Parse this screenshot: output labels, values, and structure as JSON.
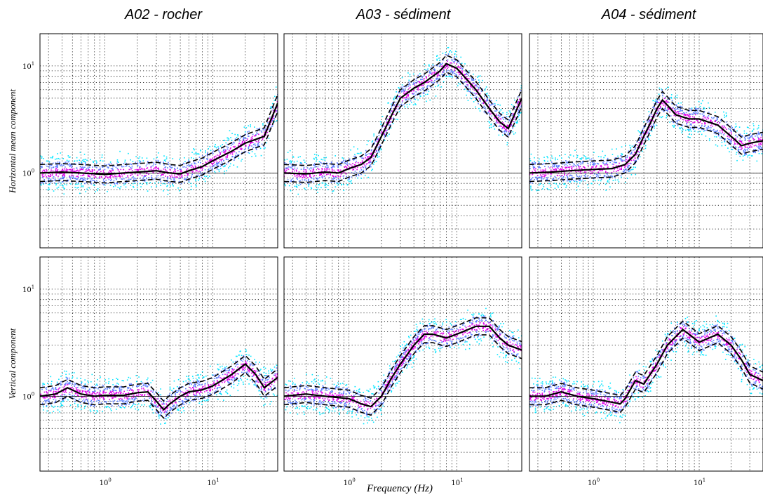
{
  "figure": {
    "column_titles": [
      "A02 - rocher",
      "A03 - sédiment",
      "A04 - sédiment"
    ],
    "row_labels": [
      "Horizontal mean component",
      "Vertical component"
    ],
    "xlabel": "Frequency (Hz)",
    "colors": {
      "scatter_low": "#00e5ff",
      "scatter_mid": "#5b7cff",
      "scatter_high": "#e000e8",
      "median_line": "#000000",
      "reference_line": "#000000",
      "grid": "#000000"
    }
  },
  "chart_data": [
    {
      "type": "line",
      "title": "A02 - rocher",
      "ylabel": "Horizontal mean component",
      "xscale": "log",
      "yscale": "log",
      "xlim": [
        0.25,
        40
      ],
      "ylim": [
        0.2,
        20
      ],
      "xticks": [
        "10^0",
        "10^1"
      ],
      "yticks": [
        "10^0",
        "10^1"
      ],
      "grid": true,
      "series": [
        {
          "x": [
            0.25,
            0.4,
            0.6,
            1,
            1.5,
            2,
            3,
            4,
            5,
            6,
            8,
            10,
            15,
            20,
            30,
            40
          ],
          "y": [
            1.0,
            1.02,
            1.0,
            0.97,
            1.0,
            1.02,
            1.05,
            1.0,
            0.98,
            1.05,
            1.15,
            1.3,
            1.6,
            1.9,
            2.2,
            4.5
          ]
        }
      ]
    },
    {
      "type": "line",
      "title": "A03 - sédiment",
      "ylabel": "",
      "xscale": "log",
      "yscale": "log",
      "xlim": [
        0.25,
        40
      ],
      "ylim": [
        0.2,
        20
      ],
      "xticks": [
        "10^0",
        "10^1"
      ],
      "yticks": [
        "10^0",
        "10^1"
      ],
      "grid": true,
      "series": [
        {
          "x": [
            0.25,
            0.4,
            0.6,
            0.8,
            1,
            1.3,
            1.6,
            2,
            2.5,
            3,
            4,
            5,
            7,
            8,
            10,
            15,
            20,
            25,
            30,
            40
          ],
          "y": [
            1.0,
            0.98,
            1.02,
            1.0,
            1.1,
            1.2,
            1.4,
            2.2,
            3.5,
            5.0,
            6.2,
            7.0,
            9.0,
            10.5,
            9.5,
            6.0,
            4.0,
            3.0,
            2.6,
            5.0
          ]
        }
      ]
    },
    {
      "type": "line",
      "title": "A04 - sédiment",
      "ylabel": "",
      "xscale": "log",
      "yscale": "log",
      "xlim": [
        0.25,
        40
      ],
      "ylim": [
        0.2,
        20
      ],
      "xticks": [
        "10^0",
        "10^1"
      ],
      "yticks": [
        "10^0",
        "10^1"
      ],
      "grid": true,
      "series": [
        {
          "x": [
            0.25,
            0.4,
            0.6,
            1,
            1.5,
            2,
            2.5,
            3,
            3.5,
            4,
            4.5,
            5,
            6,
            8,
            10,
            15,
            20,
            25,
            30,
            40
          ],
          "y": [
            1.0,
            1.02,
            1.05,
            1.08,
            1.1,
            1.2,
            1.5,
            2.2,
            3.0,
            4.0,
            4.8,
            4.3,
            3.5,
            3.2,
            3.2,
            2.8,
            2.2,
            1.8,
            1.9,
            2.0
          ]
        }
      ]
    },
    {
      "type": "line",
      "title": "",
      "ylabel": "Vertical component",
      "xscale": "log",
      "yscale": "log",
      "xlim": [
        0.25,
        40
      ],
      "ylim": [
        0.2,
        20
      ],
      "xticks": [
        "10^0",
        "10^1"
      ],
      "yticks": [
        "10^0",
        "10^1"
      ],
      "grid": true,
      "series": [
        {
          "x": [
            0.25,
            0.35,
            0.45,
            0.6,
            0.8,
            1,
            1.5,
            2,
            2.5,
            3,
            3.5,
            4,
            5,
            6,
            8,
            10,
            15,
            20,
            25,
            30,
            40
          ],
          "y": [
            1.0,
            1.05,
            1.2,
            1.05,
            1.0,
            1.02,
            1.02,
            1.08,
            1.1,
            0.9,
            0.75,
            0.85,
            1.0,
            1.1,
            1.15,
            1.25,
            1.6,
            2.0,
            1.6,
            1.2,
            1.5
          ]
        }
      ]
    },
    {
      "type": "line",
      "title": "",
      "ylabel": "",
      "xscale": "log",
      "yscale": "log",
      "xlim": [
        0.25,
        40
      ],
      "ylim": [
        0.2,
        20
      ],
      "xticks": [
        "10^0",
        "10^1"
      ],
      "yticks": [
        "10^0",
        "10^1"
      ],
      "grid": true,
      "series": [
        {
          "x": [
            0.25,
            0.4,
            0.6,
            1,
            1.3,
            1.6,
            2,
            2.5,
            3,
            4,
            5,
            6,
            8,
            10,
            15,
            20,
            25,
            30,
            40
          ],
          "y": [
            1.0,
            1.05,
            1.0,
            0.95,
            0.85,
            0.8,
            1.0,
            1.5,
            2.0,
            3.0,
            3.8,
            3.8,
            3.5,
            3.8,
            4.5,
            4.5,
            3.5,
            3.0,
            2.7
          ]
        }
      ]
    },
    {
      "type": "line",
      "title": "",
      "ylabel": "",
      "xscale": "log",
      "yscale": "log",
      "xlim": [
        0.25,
        40
      ],
      "ylim": [
        0.2,
        20
      ],
      "xticks": [
        "10^0",
        "10^1"
      ],
      "yticks": [
        "10^0",
        "10^1"
      ],
      "grid": true,
      "series": [
        {
          "x": [
            0.25,
            0.35,
            0.5,
            0.7,
            1,
            1.5,
            1.8,
            2,
            2.5,
            3,
            4,
            5,
            7,
            8,
            10,
            15,
            20,
            25,
            30,
            40
          ],
          "y": [
            1.0,
            1.0,
            1.1,
            1.0,
            0.95,
            0.88,
            0.85,
            0.95,
            1.4,
            1.3,
            2.0,
            3.0,
            4.2,
            3.8,
            3.2,
            3.8,
            3.0,
            2.2,
            1.6,
            1.4
          ]
        }
      ]
    }
  ]
}
